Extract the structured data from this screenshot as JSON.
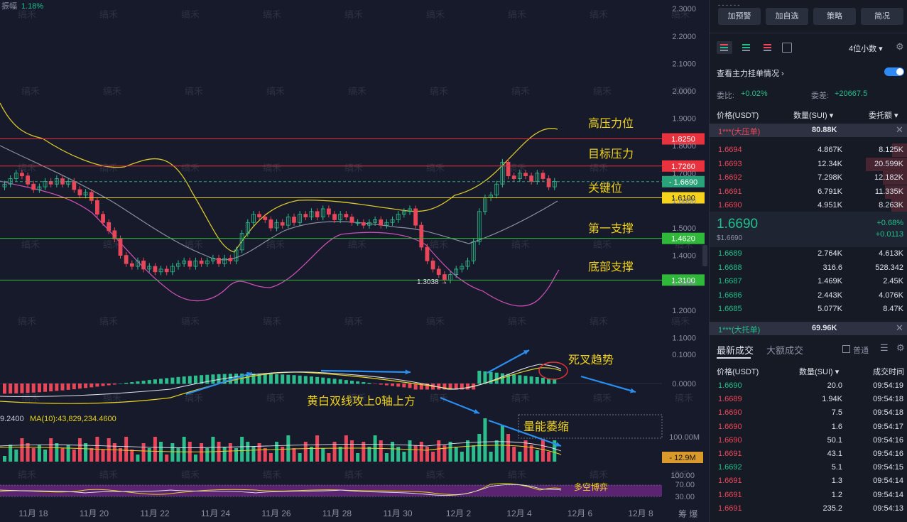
{
  "chart": {
    "amplitude_label": "振幅",
    "amplitude_value": "1.18%",
    "price_axis": [
      "2.3000",
      "2.2000",
      "2.1000",
      "2.0000",
      "1.9000",
      "1.8000",
      "1.7000",
      "1.6000",
      "1.5000",
      "1.4000",
      "1.3000",
      "1.2000",
      "1.1000"
    ],
    "price_lines": [
      {
        "label": "1.8250",
        "price": 1.825,
        "color": "#e8323e",
        "name": "高压力位"
      },
      {
        "label": "1.7260",
        "price": 1.726,
        "color": "#e8323e",
        "name": "目标压力"
      },
      {
        "label": "1.6690",
        "price": 1.669,
        "color": "#2aa37a",
        "name": "关键位"
      },
      {
        "label": "1.6100",
        "price": 1.61,
        "color": "#e8d21d",
        "name": "关键位"
      },
      {
        "label": "1.4620",
        "price": 1.462,
        "color": "#2fb83a",
        "name": "第一支撑"
      },
      {
        "label": "1.3100",
        "price": 1.31,
        "color": "#2fb83a",
        "name": "底部支撑"
      }
    ],
    "annotations": {
      "high_pressure": "高压力位",
      "target_pressure": "目标压力",
      "key_level": "关键位",
      "first_support": "第一支撑",
      "bottom_support": "底部支撑",
      "low_marker": "1.3038",
      "death_cross": "死叉趋势",
      "macd_note": "黄白双线攻上0轴上方",
      "volume_note": "量能萎缩",
      "rsi_note": "多空博弈"
    },
    "macd_axis": [
      "0.1000",
      "0.0000"
    ],
    "volume_axis": [
      "100.00M"
    ],
    "volume_tag": "12.9M",
    "volume_ma_prefix": "9.2400",
    "volume_ma_label": "MA(10):43,829,234.4600",
    "rsi_axis": [
      "100.00",
      "70.00",
      "30.00"
    ],
    "dates": [
      "11月 18",
      "11月 20",
      "11月 22",
      "11月 24",
      "11月 26",
      "11月 28",
      "11月 30",
      "12月 2",
      "12月 4",
      "12月 6",
      "12月 8"
    ],
    "corner_icons": "筹 爆",
    "watermark": "缟禾"
  },
  "panel": {
    "buttons": [
      "加预警",
      "加自选",
      "策略",
      "简况"
    ],
    "decimal_select": "4位小数",
    "orderbook_title": "查看主力挂单情况",
    "ratio_label": "委比:",
    "ratio_value": "+0.02%",
    "diff_label": "委差:",
    "diff_value": "+20667.5",
    "col_price": "价格(USDT)",
    "col_qty": "数量(SUI)",
    "col_amount": "委托额",
    "big_ask_label": "1***(大压单)",
    "big_ask_qty": "80.88K",
    "asks": [
      {
        "price": "1.6694",
        "qty": "4.867K",
        "amt": "8.125K",
        "w": 0.32
      },
      {
        "price": "1.6693",
        "qty": "12.34K",
        "amt": "20.599K",
        "w": 0.85
      },
      {
        "price": "1.6692",
        "qty": "7.298K",
        "amt": "12.182K",
        "w": 0.5
      },
      {
        "price": "1.6691",
        "qty": "6.791K",
        "amt": "11.335K",
        "w": 0.46
      },
      {
        "price": "1.6690",
        "qty": "4.951K",
        "amt": "8.263K",
        "w": 0.33
      }
    ],
    "last_price": "1.6690",
    "last_price_usd": "$1.6690",
    "change_pct": "+0.68%",
    "change_abs": "+0.0113",
    "bids": [
      {
        "price": "1.6689",
        "qty": "2.764K",
        "amt": "4.613K"
      },
      {
        "price": "1.6688",
        "qty": "316.6",
        "amt": "528.342"
      },
      {
        "price": "1.6687",
        "qty": "1.469K",
        "amt": "2.45K"
      },
      {
        "price": "1.6686",
        "qty": "2.443K",
        "amt": "4.076K"
      },
      {
        "price": "1.6685",
        "qty": "5.077K",
        "amt": "8.47K"
      }
    ],
    "big_bid_label": "1***(大托单)",
    "big_bid_qty": "69.96K",
    "trades_tab": "最新成交",
    "big_trades_tab": "大额成交",
    "normal_label": "普通",
    "trade_col_price": "价格(USDT)",
    "trade_col_qty": "数量(SUI)",
    "trade_col_time": "成交时间",
    "trades": [
      {
        "price": "1.6690",
        "qty": "20.0",
        "time": "09:54:19",
        "side": "green"
      },
      {
        "price": "1.6689",
        "qty": "1.94K",
        "time": "09:54:18",
        "side": "red"
      },
      {
        "price": "1.6690",
        "qty": "7.5",
        "time": "09:54:18",
        "side": "red"
      },
      {
        "price": "1.6690",
        "qty": "1.6",
        "time": "09:54:17",
        "side": "red"
      },
      {
        "price": "1.6690",
        "qty": "50.1",
        "time": "09:54:16",
        "side": "red"
      },
      {
        "price": "1.6691",
        "qty": "43.1",
        "time": "09:54:16",
        "side": "red"
      },
      {
        "price": "1.6692",
        "qty": "5.1",
        "time": "09:54:15",
        "side": "green"
      },
      {
        "price": "1.6691",
        "qty": "1.3",
        "time": "09:54:14",
        "side": "red"
      },
      {
        "price": "1.6691",
        "qty": "1.2",
        "time": "09:54:14",
        "side": "red"
      },
      {
        "price": "1.6691",
        "qty": "235.2",
        "time": "09:54:13",
        "side": "red"
      }
    ]
  }
}
